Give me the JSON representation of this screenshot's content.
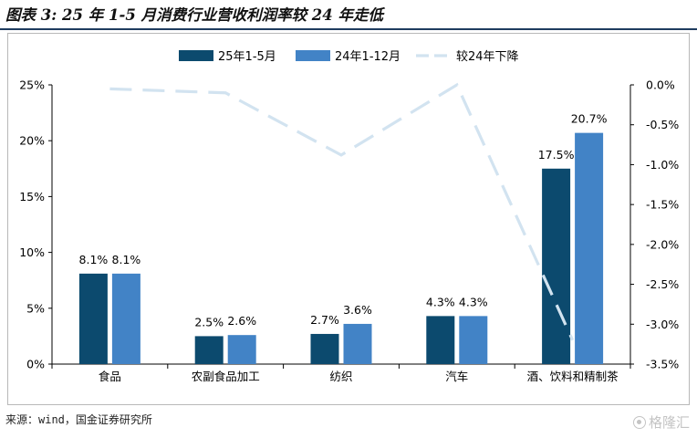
{
  "figure": {
    "title": "图表 3: 25 年 1-5 月消费行业营收利润率较 24 年走低",
    "source": "来源：wind，国金证券研究所",
    "watermark": "格隆汇"
  },
  "colors": {
    "series_2025": "#0c4a6e",
    "series_2024": "#4283c6",
    "diff_line": "#d2e3f0",
    "axis": "#000000",
    "title_rule": "#1f3c5f"
  },
  "chart_data": {
    "type": "bar",
    "categories": [
      "食品",
      "农副食品加工",
      "纺织",
      "汽车",
      "酒、饮料和精制茶"
    ],
    "series": [
      {
        "name": "25年1-5月",
        "values": [
          8.1,
          2.5,
          2.7,
          4.3,
          17.5
        ],
        "labels": [
          "8.1%",
          "2.5%",
          "2.7%",
          "4.3%",
          "17.5%"
        ],
        "axis": "left"
      },
      {
        "name": "24年1-12月",
        "values": [
          8.1,
          2.6,
          3.6,
          4.3,
          20.7
        ],
        "labels": [
          "8.1%",
          "2.6%",
          "3.6%",
          "4.3%",
          "20.7%"
        ],
        "axis": "left"
      }
    ],
    "line_series": {
      "name": "较24年下降",
      "type": "line",
      "style": "dashed",
      "axis": "right",
      "values": [
        -0.05,
        -0.1,
        -0.88,
        0.0,
        -3.2
      ]
    },
    "y_left": {
      "ylim": [
        0,
        25
      ],
      "ticks": [
        0,
        5,
        10,
        15,
        20,
        25
      ],
      "tick_labels": [
        "0%",
        "5%",
        "10%",
        "15%",
        "20%",
        "25%"
      ]
    },
    "y_right": {
      "ylim": [
        -3.5,
        0
      ],
      "ticks": [
        0,
        -0.5,
        -1.0,
        -1.5,
        -2.0,
        -2.5,
        -3.0,
        -3.5
      ],
      "tick_labels": [
        "0.0%",
        "-0.5%",
        "-1.0%",
        "-1.5%",
        "-2.0%",
        "-2.5%",
        "-3.0%",
        "-3.5%"
      ]
    },
    "legend": {
      "placement": "top-center",
      "entries": [
        "25年1-5月",
        "24年1-12月",
        "较24年下降"
      ]
    },
    "grid": false
  }
}
